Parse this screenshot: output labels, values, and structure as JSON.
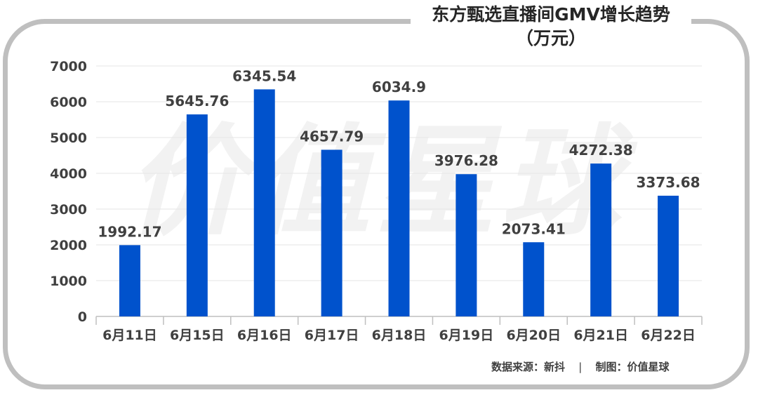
{
  "chart_data": {
    "type": "bar",
    "title_line1": "东方甄选直播间GMV增长趋势",
    "title_line2": "（万元）",
    "categories": [
      "6月11日",
      "6月15日",
      "6月16日",
      "6月17日",
      "6月18日",
      "6月19日",
      "6月20日",
      "6月21日",
      "6月22日"
    ],
    "values": [
      1992.17,
      5645.76,
      6345.54,
      4657.79,
      6034.9,
      3976.28,
      2073.41,
      4272.38,
      3373.68
    ],
    "value_labels": [
      "1992.17",
      "5645.76",
      "6345.54",
      "4657.79",
      "6034.9",
      "3976.28",
      "2073.41",
      "4272.38",
      "3373.68"
    ],
    "yticks": [
      "0",
      "1000",
      "2000",
      "3000",
      "4000",
      "5000",
      "6000",
      "7000"
    ],
    "ylim": [
      0,
      7000
    ],
    "grid": true,
    "bar_color": "#0052cc"
  },
  "watermark": "价值星球",
  "footer": {
    "source": "数据来源：新抖",
    "separator": "|",
    "credit": "制图：价值星球"
  }
}
